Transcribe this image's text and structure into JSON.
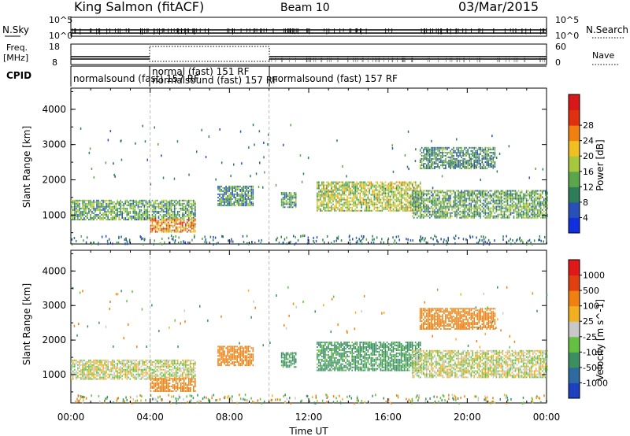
{
  "header": {
    "station": "King Salmon (fitACF)",
    "beam": "Beam 10",
    "date": "03/Mar/2015"
  },
  "strip_labels": {
    "nsky": "N.Sky",
    "nsky_ticks": [
      "10^5",
      "10^0"
    ],
    "nsearch": "N.Search",
    "nsearch_ticks": [
      "10^5",
      "10^0"
    ],
    "freq": "Freq.",
    "freq_unit": "[MHz]",
    "freq_ticks": [
      "18",
      "8"
    ],
    "nave": "Nave",
    "nave_ticks": [
      "60",
      "0"
    ],
    "cpid": "CPID"
  },
  "cpid_segments": [
    {
      "label": "normalsound (fast) 157 RF",
      "start": 0.0,
      "end": 4.0
    },
    {
      "label": "normal (fast) 151 RF",
      "start": 4.0,
      "end": 10.0
    },
    {
      "label": "normalsound (fast) 157 RF",
      "start": 5.6,
      "end": 10.0
    },
    {
      "label": "normalsound (fast) 157 RF",
      "start": 10.0,
      "end": 24.0
    }
  ],
  "chart_data": [
    {
      "type": "heatmap",
      "title": "",
      "xlabel": "",
      "ylabel": "Slant Range [km]",
      "xlim": [
        0,
        24
      ],
      "ylim": [
        180,
        4600
      ],
      "yticks": [
        "1000",
        "2000",
        "3000",
        "4000"
      ],
      "colorbar": {
        "label": "Power [dB]",
        "ticks": [
          "4",
          "8",
          "12",
          "16",
          "20",
          "24",
          "28"
        ],
        "colors": [
          "#1030e0",
          "#2850b8",
          "#2e7d5a",
          "#5aa64a",
          "#a6c83c",
          "#f0c020",
          "#f08010",
          "#e03010",
          "#d81818"
        ]
      },
      "echo_regions": [
        {
          "t0": 0.0,
          "t1": 6.3,
          "r0": 850,
          "r1": 1400,
          "value": 10
        },
        {
          "t0": 4.0,
          "t1": 6.3,
          "r0": 500,
          "r1": 900,
          "value": 20
        },
        {
          "t0": 7.4,
          "t1": 9.2,
          "r0": 1250,
          "r1": 1800,
          "value": 8
        },
        {
          "t0": 10.6,
          "t1": 11.4,
          "r0": 1200,
          "r1": 1650,
          "value": 10
        },
        {
          "t0": 12.4,
          "t1": 17.6,
          "r0": 1100,
          "r1": 1950,
          "value": 14
        },
        {
          "t0": 17.2,
          "t1": 24.0,
          "r0": 900,
          "r1": 1700,
          "value": 10
        },
        {
          "t0": 17.6,
          "t1": 21.4,
          "r0": 2300,
          "r1": 2900,
          "value": 8
        }
      ]
    },
    {
      "type": "heatmap",
      "title": "",
      "xlabel": "Time UT",
      "ylabel": "Slant Range [km]",
      "xlim": [
        0,
        24
      ],
      "ylim": [
        180,
        4600
      ],
      "xticks": [
        "00:00",
        "04:00",
        "08:00",
        "12:00",
        "16:00",
        "20:00",
        "00:00"
      ],
      "yticks": [
        "1000",
        "2000",
        "3000",
        "4000"
      ],
      "colorbar": {
        "label": "Velocity [m s^-1]",
        "ticks": [
          "1000",
          "500",
          "100",
          "25",
          "-25",
          "-100",
          "-500",
          "-1000"
        ],
        "colors": [
          "#1c40c0",
          "#2c6aa0",
          "#3a9060",
          "#64c040",
          "#c8c8c8",
          "#f0b020",
          "#f08010",
          "#e04010",
          "#e01818"
        ]
      },
      "echo_regions": [
        {
          "t0": 0.0,
          "t1": 6.3,
          "r0": 850,
          "r1": 1400,
          "value": 0
        },
        {
          "t0": 4.0,
          "t1": 6.3,
          "r0": 500,
          "r1": 900,
          "value": -200
        },
        {
          "t0": 7.4,
          "t1": 9.2,
          "r0": 1250,
          "r1": 1800,
          "value": -300
        },
        {
          "t0": 10.6,
          "t1": 11.4,
          "r0": 1200,
          "r1": 1650,
          "value": 150
        },
        {
          "t0": 12.4,
          "t1": 17.6,
          "r0": 1100,
          "r1": 1950,
          "value": 150
        },
        {
          "t0": 17.2,
          "t1": 24.0,
          "r0": 900,
          "r1": 1700,
          "value": 0
        },
        {
          "t0": 17.6,
          "t1": 21.4,
          "r0": 2300,
          "r1": 2900,
          "value": -200
        }
      ]
    }
  ]
}
